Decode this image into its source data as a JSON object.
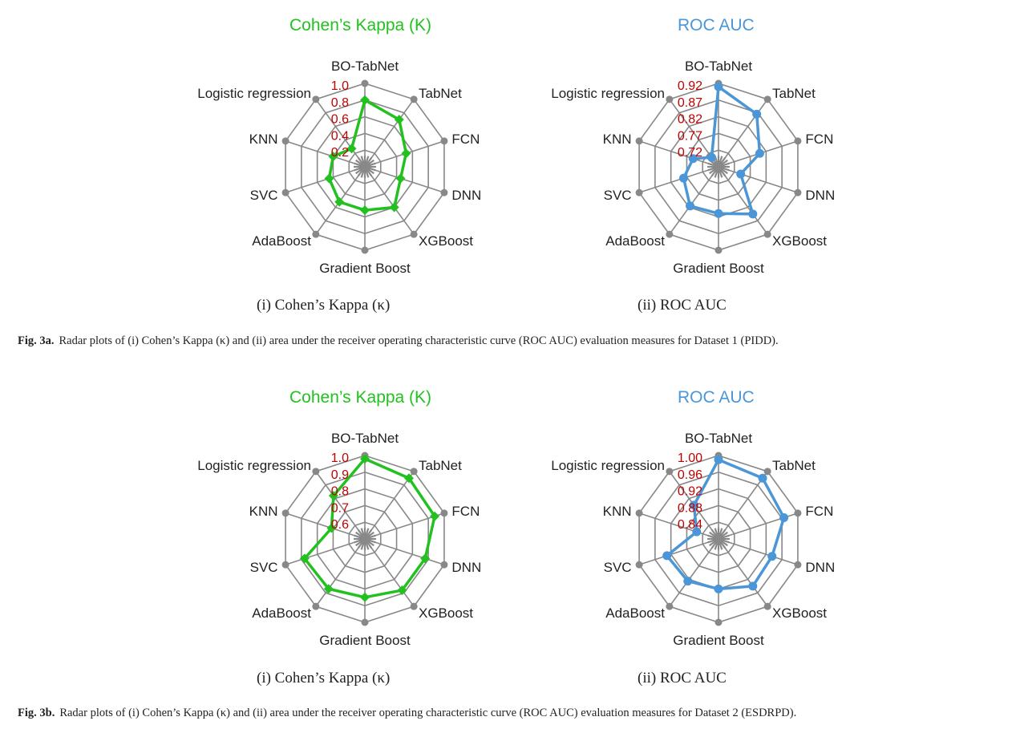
{
  "colors": {
    "kappa": "#22c11f",
    "auc": "#4a96d6",
    "grid": "#888888",
    "tick": "#c00000"
  },
  "figure_a": {
    "caption_label": "Fig. 3a.",
    "caption_text": "Radar plots of (i) Cohen’s Kappa (κ) and (ii) area under the receiver operating characteristic curve (ROC AUC) evaluation measures for Dataset 1 (PIDD)."
  },
  "figure_b": {
    "caption_label": "Fig. 3b.",
    "caption_text": "Radar plots of (i) Cohen’s Kappa (κ) and (ii) area under the receiver operating characteristic curve (ROC AUC) evaluation measures for Dataset 2 (ESDRPD)."
  },
  "chart_data": [
    {
      "type": "radar",
      "title": "Cohen’s Kappa (K)",
      "subcaption": "(i) Cohen’s Kappa (κ)",
      "axes": [
        "BO-TabNet",
        "TabNet",
        "FCN",
        "DNN",
        "XGBoost",
        "Gradient Boost",
        "AdaBoost",
        "SVC",
        "KNN",
        "Logistic regression"
      ],
      "ticks": [
        "0.2",
        "0.4",
        "0.6",
        "0.8",
        "1.0"
      ],
      "range": [
        0,
        1.0
      ],
      "series": [
        {
          "values": [
            0.8,
            0.7,
            0.52,
            0.45,
            0.6,
            0.52,
            0.52,
            0.45,
            0.4,
            0.27
          ]
        }
      ]
    },
    {
      "type": "radar",
      "title": "ROC AUC",
      "subcaption": "(ii) ROC AUC",
      "axes": [
        "BO-TabNet",
        "TabNet",
        "FCN",
        "DNN",
        "XGBoost",
        "Gradient Boost",
        "AdaBoost",
        "SVC",
        "KNN",
        "Logistic regression"
      ],
      "ticks": [
        "0.72",
        "0.77",
        "0.82",
        "0.87",
        "0.92"
      ],
      "range": [
        0.67,
        0.92
      ],
      "series": [
        {
          "values": [
            0.91,
            0.865,
            0.8,
            0.74,
            0.845,
            0.81,
            0.815,
            0.78,
            0.75,
            0.705
          ]
        }
      ]
    },
    {
      "type": "radar",
      "title": "Cohen’s Kappa (K)",
      "subcaption": "(i) Cohen’s Kappa (κ)",
      "axes": [
        "BO-TabNet",
        "TabNet",
        "FCN",
        "DNN",
        "XGBoost",
        "Gradient Boost",
        "AdaBoost",
        "SVC",
        "KNN",
        "Logistic regression"
      ],
      "ticks": [
        "0.6",
        "0.7",
        "0.8",
        "0.9",
        "1.0"
      ],
      "range": [
        0.5,
        1.0
      ],
      "series": [
        {
          "values": [
            0.98,
            0.95,
            0.94,
            0.88,
            0.88,
            0.85,
            0.87,
            0.88,
            0.71,
            0.82
          ]
        }
      ]
    },
    {
      "type": "radar",
      "title": "ROC AUC",
      "subcaption": "(ii) ROC AUC",
      "axes": [
        "BO-TabNet",
        "TabNet",
        "FCN",
        "DNN",
        "XGBoost",
        "Gradient Boost",
        "AdaBoost",
        "SVC",
        "KNN",
        "Logistic regression"
      ],
      "ticks": [
        "0.84",
        "0.88",
        "0.92",
        "0.96",
        "1.00"
      ],
      "range": [
        0.8,
        1.0
      ],
      "series": [
        {
          "values": [
            0.99,
            0.98,
            0.965,
            0.935,
            0.94,
            0.92,
            0.925,
            0.93,
            0.855,
            0.9
          ]
        }
      ]
    }
  ]
}
